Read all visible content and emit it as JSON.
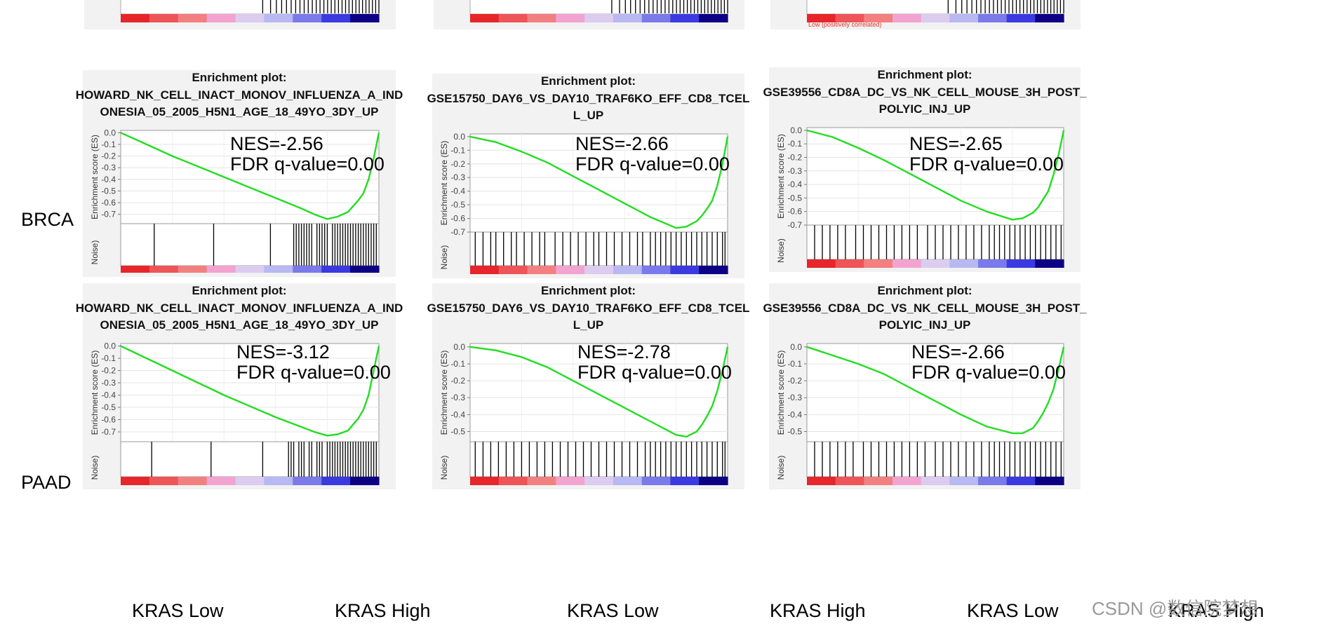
{
  "row_labels": [
    "BRCA",
    "PAAD"
  ],
  "panel_heading": "Enrichment plot:",
  "y_axis_title": "Enrichment score (ES)",
  "noise_label": "Noise)",
  "top_strip_note": "Low (positively correlated)",
  "bottom_labels": {
    "low": "KRAS Low",
    "high": "KRAS High"
  },
  "watermark": "CSDN @数信院梦想",
  "colors": {
    "curve": "#22dd22",
    "hits": "#000000",
    "red": "#e6262b",
    "pink": "#f3a3cf",
    "blue": "#3a3ae0",
    "navy": "#0d0085"
  },
  "chart_data": [
    {
      "type": "line",
      "row": "BRCA",
      "title": "HOWARD_NK_CELL_INACT_MONOV_INFLUENZA_A_INDONESIA_05_2005_H5N1_AGE_18_49YO_3DY_UP",
      "title_lines": [
        "HOWARD_NK_CELL_INACT_MONOV_INFLUENZA_A_IND",
        "ONESIA_05_2005_H5N1_AGE_18_49YO_3DY_UP"
      ],
      "ylabel": "Enrichment score (ES)",
      "ylim": [
        -0.78,
        0.02
      ],
      "yticks": [
        "0.0",
        "-0.1",
        "-0.2",
        "-0.3",
        "-0.4",
        "-0.5",
        "-0.6",
        "-0.7"
      ],
      "ytick_values": [
        0,
        -0.1,
        -0.2,
        -0.3,
        -0.4,
        -0.5,
        -0.6,
        -0.7
      ],
      "curve_x": [
        0,
        0.1,
        0.2,
        0.3,
        0.4,
        0.5,
        0.6,
        0.7,
        0.75,
        0.8,
        0.84,
        0.88,
        0.9,
        0.92,
        0.94,
        0.96,
        0.98,
        1.0
      ],
      "curve_y": [
        0,
        -0.1,
        -0.2,
        -0.29,
        -0.38,
        -0.47,
        -0.56,
        -0.65,
        -0.7,
        -0.74,
        -0.72,
        -0.68,
        -0.63,
        -0.58,
        -0.52,
        -0.4,
        -0.22,
        0
      ],
      "min_es": -0.74,
      "NES": "NES=-2.56",
      "FDR": "FDR q-value=0.00",
      "hits": [
        0.13,
        0.36,
        0.58,
        0.67,
        0.68,
        0.69,
        0.7,
        0.71,
        0.72,
        0.73,
        0.74,
        0.76,
        0.77,
        0.78,
        0.79,
        0.8,
        0.82,
        0.83,
        0.84,
        0.85,
        0.86,
        0.87,
        0.88,
        0.89,
        0.9,
        0.91,
        0.92,
        0.93,
        0.94,
        0.95,
        0.96,
        0.97,
        0.98,
        0.99
      ]
    },
    {
      "type": "line",
      "row": "BRCA",
      "title": "GSE15750_DAY6_VS_DAY10_TRAF6KO_EFF_CD8_TCELL_UP",
      "title_lines": [
        "GSE15750_DAY6_VS_DAY10_TRAF6KO_EFF_CD8_TCEL",
        "L_UP"
      ],
      "ylabel": "Enrichment score (ES)",
      "ylim": [
        -0.7,
        0.02
      ],
      "yticks": [
        "0.0",
        "-0.1",
        "-0.2",
        "-0.3",
        "-0.4",
        "-0.5",
        "-0.6",
        "-0.7"
      ],
      "ytick_values": [
        0,
        -0.1,
        -0.2,
        -0.3,
        -0.4,
        -0.5,
        -0.6,
        -0.7
      ],
      "curve_x": [
        0,
        0.1,
        0.2,
        0.3,
        0.4,
        0.5,
        0.6,
        0.7,
        0.75,
        0.8,
        0.84,
        0.88,
        0.9,
        0.92,
        0.94,
        0.96,
        0.98,
        1.0
      ],
      "curve_y": [
        0,
        -0.04,
        -0.11,
        -0.19,
        -0.29,
        -0.39,
        -0.49,
        -0.59,
        -0.63,
        -0.67,
        -0.66,
        -0.62,
        -0.58,
        -0.53,
        -0.47,
        -0.36,
        -0.2,
        0
      ],
      "min_es": -0.67,
      "NES": "NES=-2.66",
      "FDR": "FDR q-value=0.00",
      "hits": [
        0.02,
        0.05,
        0.08,
        0.1,
        0.13,
        0.16,
        0.18,
        0.21,
        0.24,
        0.27,
        0.29,
        0.33,
        0.36,
        0.39,
        0.42,
        0.45,
        0.48,
        0.5,
        0.53,
        0.56,
        0.59,
        0.62,
        0.65,
        0.67,
        0.7,
        0.72,
        0.74,
        0.76,
        0.78,
        0.8,
        0.82,
        0.84,
        0.86,
        0.88,
        0.9,
        0.92,
        0.94,
        0.96,
        0.98,
        0.99
      ]
    },
    {
      "type": "line",
      "row": "BRCA",
      "title": "GSE39556_CD8A_DC_VS_NK_CELL_MOUSE_3H_POST_POLYIC_INJ_UP",
      "title_lines": [
        "GSE39556_CD8A_DC_VS_NK_CELL_MOUSE_3H_POST_",
        "POLYIC_INJ_UP"
      ],
      "ylabel": "Enrichment score (ES)",
      "ylim": [
        -0.7,
        0.02
      ],
      "yticks": [
        "0.0",
        "-0.1",
        "-0.2",
        "-0.3",
        "-0.4",
        "-0.5",
        "-0.6",
        "-0.7"
      ],
      "ytick_values": [
        0,
        -0.1,
        -0.2,
        -0.3,
        -0.4,
        -0.5,
        -0.6,
        -0.7
      ],
      "curve_x": [
        0,
        0.1,
        0.2,
        0.3,
        0.4,
        0.5,
        0.6,
        0.7,
        0.75,
        0.8,
        0.84,
        0.88,
        0.9,
        0.92,
        0.94,
        0.96,
        0.98,
        1.0
      ],
      "curve_y": [
        0,
        -0.05,
        -0.13,
        -0.22,
        -0.32,
        -0.42,
        -0.52,
        -0.6,
        -0.63,
        -0.66,
        -0.65,
        -0.61,
        -0.57,
        -0.51,
        -0.45,
        -0.33,
        -0.18,
        0
      ],
      "min_es": -0.66,
      "NES": "NES=-2.65",
      "FDR": "FDR q-value=0.00",
      "hits": [
        0.03,
        0.06,
        0.09,
        0.12,
        0.15,
        0.19,
        0.22,
        0.25,
        0.28,
        0.31,
        0.34,
        0.37,
        0.4,
        0.43,
        0.47,
        0.5,
        0.53,
        0.56,
        0.59,
        0.62,
        0.65,
        0.68,
        0.71,
        0.73,
        0.75,
        0.77,
        0.79,
        0.81,
        0.83,
        0.85,
        0.87,
        0.89,
        0.91,
        0.93,
        0.95,
        0.97,
        0.99
      ]
    },
    {
      "type": "line",
      "row": "PAAD",
      "title": "HOWARD_NK_CELL_INACT_MONOV_INFLUENZA_A_INDONESIA_05_2005_H5N1_AGE_18_49YO_3DY_UP",
      "title_lines": [
        "HOWARD_NK_CELL_INACT_MONOV_INFLUENZA_A_IND",
        "ONESIA_05_2005_H5N1_AGE_18_49YO_3DY_UP"
      ],
      "ylabel": "Enrichment score (ES)",
      "ylim": [
        -0.78,
        0.02
      ],
      "yticks": [
        "0.0",
        "-0.1",
        "-0.2",
        "-0.3",
        "-0.4",
        "-0.5",
        "-0.6",
        "-0.7"
      ],
      "ytick_values": [
        0,
        -0.1,
        -0.2,
        -0.3,
        -0.4,
        -0.5,
        -0.6,
        -0.7
      ],
      "curve_x": [
        0,
        0.1,
        0.2,
        0.3,
        0.4,
        0.5,
        0.6,
        0.7,
        0.75,
        0.8,
        0.84,
        0.88,
        0.9,
        0.92,
        0.94,
        0.96,
        0.98,
        1.0
      ],
      "curve_y": [
        0,
        -0.1,
        -0.2,
        -0.3,
        -0.4,
        -0.49,
        -0.58,
        -0.66,
        -0.7,
        -0.73,
        -0.72,
        -0.69,
        -0.64,
        -0.59,
        -0.52,
        -0.4,
        -0.2,
        0
      ],
      "min_es": -0.73,
      "NES": "NES=-3.12",
      "FDR": "FDR q-value=0.00",
      "hits": [
        0.12,
        0.35,
        0.55,
        0.65,
        0.66,
        0.67,
        0.69,
        0.7,
        0.71,
        0.73,
        0.74,
        0.76,
        0.77,
        0.78,
        0.8,
        0.81,
        0.82,
        0.83,
        0.84,
        0.85,
        0.86,
        0.87,
        0.88,
        0.89,
        0.9,
        0.91,
        0.92,
        0.93,
        0.94,
        0.95,
        0.96,
        0.97,
        0.98,
        0.99
      ]
    },
    {
      "type": "line",
      "row": "PAAD",
      "title": "GSE15750_DAY6_VS_DAY10_TRAF6KO_EFF_CD8_TCELL_UP",
      "title_lines": [
        "GSE15750_DAY6_VS_DAY10_TRAF6KO_EFF_CD8_TCEL",
        "L_UP"
      ],
      "ylabel": "Enrichment score (ES)",
      "ylim": [
        -0.56,
        0.02
      ],
      "yticks": [
        "0.0",
        "-0.1",
        "-0.2",
        "-0.3",
        "-0.4",
        "-0.5"
      ],
      "ytick_values": [
        0,
        -0.1,
        -0.2,
        -0.3,
        -0.4,
        -0.5
      ],
      "curve_x": [
        0,
        0.1,
        0.2,
        0.3,
        0.4,
        0.5,
        0.6,
        0.7,
        0.75,
        0.8,
        0.84,
        0.88,
        0.9,
        0.92,
        0.94,
        0.96,
        0.98,
        1.0
      ],
      "curve_y": [
        0,
        -0.02,
        -0.06,
        -0.12,
        -0.2,
        -0.28,
        -0.36,
        -0.44,
        -0.48,
        -0.52,
        -0.53,
        -0.5,
        -0.46,
        -0.41,
        -0.35,
        -0.26,
        -0.14,
        0
      ],
      "min_es": -0.53,
      "NES": "NES=-2.78",
      "FDR": "FDR q-value=0.00",
      "hits": [
        0.02,
        0.05,
        0.08,
        0.11,
        0.14,
        0.17,
        0.2,
        0.23,
        0.26,
        0.29,
        0.32,
        0.35,
        0.38,
        0.41,
        0.44,
        0.47,
        0.5,
        0.53,
        0.56,
        0.59,
        0.62,
        0.65,
        0.68,
        0.7,
        0.72,
        0.74,
        0.76,
        0.78,
        0.8,
        0.82,
        0.84,
        0.86,
        0.88,
        0.9,
        0.92,
        0.94,
        0.96,
        0.98,
        0.99
      ]
    },
    {
      "type": "line",
      "row": "PAAD",
      "title": "GSE39556_CD8A_DC_VS_NK_CELL_MOUSE_3H_POST_POLYIC_INJ_UP",
      "title_lines": [
        "GSE39556_CD8A_DC_VS_NK_CELL_MOUSE_3H_POST_",
        "POLYIC_INJ_UP"
      ],
      "ylabel": "Enrichment score (ES)",
      "ylim": [
        -0.56,
        0.02
      ],
      "yticks": [
        "0.0",
        "-0.1",
        "-0.2",
        "-0.3",
        "-0.4",
        "-0.5"
      ],
      "ytick_values": [
        0,
        -0.1,
        -0.2,
        -0.3,
        -0.4,
        -0.5
      ],
      "curve_x": [
        0,
        0.1,
        0.2,
        0.3,
        0.4,
        0.5,
        0.6,
        0.7,
        0.75,
        0.8,
        0.84,
        0.88,
        0.9,
        0.92,
        0.94,
        0.96,
        0.98,
        1.0
      ],
      "curve_y": [
        0,
        -0.05,
        -0.1,
        -0.16,
        -0.24,
        -0.32,
        -0.4,
        -0.47,
        -0.49,
        -0.51,
        -0.51,
        -0.48,
        -0.44,
        -0.39,
        -0.33,
        -0.25,
        -0.13,
        0
      ],
      "min_es": -0.51,
      "NES": "NES=-2.66",
      "FDR": "FDR q-value=0.00",
      "hits": [
        0.03,
        0.06,
        0.09,
        0.12,
        0.15,
        0.18,
        0.22,
        0.25,
        0.28,
        0.31,
        0.34,
        0.37,
        0.4,
        0.43,
        0.46,
        0.5,
        0.53,
        0.56,
        0.59,
        0.62,
        0.65,
        0.68,
        0.71,
        0.73,
        0.75,
        0.77,
        0.79,
        0.81,
        0.83,
        0.85,
        0.87,
        0.89,
        0.91,
        0.93,
        0.95,
        0.97,
        0.99
      ]
    }
  ]
}
